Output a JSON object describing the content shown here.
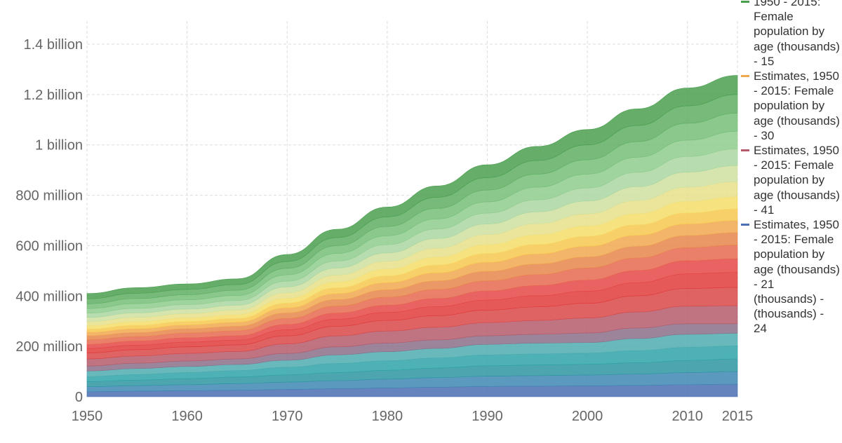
{
  "chart_data": {
    "type": "area",
    "stacked": true,
    "x": [
      1950,
      1955,
      1960,
      1965,
      1970,
      1975,
      1980,
      1985,
      1990,
      1995,
      2000,
      2005,
      2010,
      2015
    ],
    "xlim": [
      1950,
      2015
    ],
    "ylim": [
      0,
      1400000000
    ],
    "x_ticks": [
      {
        "value": 1950,
        "label": "1950"
      },
      {
        "value": 1960,
        "label": "1960"
      },
      {
        "value": 1970,
        "label": "1970"
      },
      {
        "value": 1980,
        "label": "1980"
      },
      {
        "value": 1990,
        "label": "1990"
      },
      {
        "value": 2000,
        "label": "2000"
      },
      {
        "value": 2010,
        "label": "2010"
      },
      {
        "value": 2015,
        "label": "2015"
      }
    ],
    "y_ticks": [
      {
        "value": 0,
        "label": "0"
      },
      {
        "value": 200000000,
        "label": "200 million"
      },
      {
        "value": 400000000,
        "label": "400 million"
      },
      {
        "value": 600000000,
        "label": "600 million"
      },
      {
        "value": 800000000,
        "label": "800 million"
      },
      {
        "value": 1000000000,
        "label": "1 billion"
      },
      {
        "value": 1200000000,
        "label": "1.2 billion"
      },
      {
        "value": 1400000000,
        "label": "1.4 billion"
      }
    ],
    "grid": true,
    "legend_position": "right",
    "series_colors": [
      "#4a6fb3",
      "#3f87b3",
      "#2e97a1",
      "#2fa3a8",
      "#4fadb0",
      "#8b6f8a",
      "#b55a6a",
      "#d94848",
      "#e03c3c",
      "#e54848",
      "#e66a4f",
      "#e8864c",
      "#f0a850",
      "#f7c850",
      "#f5de6a",
      "#e8e08a",
      "#cfe0a0",
      "#a9d6a2",
      "#8fcc8d",
      "#76be78",
      "#5fae62",
      "#4a9f4f"
    ],
    "series": [
      {
        "values": [
          20,
          22,
          24,
          26,
          29,
          32,
          35,
          38,
          41,
          42,
          43,
          45,
          48,
          50
        ]
      },
      {
        "values": [
          20,
          22,
          24,
          26,
          29,
          32,
          35,
          38,
          41,
          42,
          43,
          45,
          48,
          50
        ]
      },
      {
        "values": [
          20,
          22,
          24,
          26,
          29,
          32,
          35,
          38,
          41,
          42,
          43,
          45,
          48,
          50
        ]
      },
      {
        "values": [
          20,
          22,
          24,
          26,
          30,
          36,
          38,
          40,
          43,
          44,
          44,
          48,
          52,
          52
        ]
      },
      {
        "values": [
          22,
          24,
          24,
          24,
          28,
          34,
          36,
          38,
          42,
          43,
          42,
          48,
          52,
          50
        ]
      },
      {
        "values": [
          20,
          21,
          22,
          22,
          27,
          32,
          34,
          34,
          34,
          35,
          38,
          42,
          42,
          38
        ]
      },
      {
        "values": [
          28,
          29,
          30,
          30,
          38,
          44,
          48,
          50,
          52,
          55,
          60,
          64,
          70,
          72
        ]
      },
      {
        "values": [
          24,
          25,
          26,
          26,
          32,
          38,
          42,
          46,
          50,
          54,
          58,
          64,
          70,
          72
        ]
      },
      {
        "values": [
          18,
          18,
          19,
          19,
          24,
          28,
          32,
          36,
          40,
          44,
          48,
          52,
          58,
          60
        ]
      },
      {
        "values": [
          16,
          16,
          17,
          17,
          21,
          24,
          28,
          32,
          36,
          40,
          44,
          48,
          52,
          54
        ]
      },
      {
        "values": [
          18,
          18,
          19,
          20,
          24,
          28,
          32,
          36,
          40,
          44,
          48,
          50,
          52,
          54
        ]
      },
      {
        "values": [
          16,
          16,
          17,
          18,
          22,
          26,
          30,
          34,
          38,
          42,
          44,
          46,
          48,
          50
        ]
      },
      {
        "values": [
          14,
          15,
          15,
          16,
          20,
          24,
          28,
          32,
          36,
          40,
          42,
          44,
          46,
          48
        ]
      },
      {
        "values": [
          13,
          14,
          14,
          15,
          19,
          23,
          27,
          31,
          35,
          38,
          40,
          42,
          44,
          46
        ]
      },
      {
        "values": [
          13,
          14,
          14,
          15,
          19,
          23,
          27,
          31,
          35,
          38,
          41,
          44,
          46,
          48
        ]
      },
      {
        "values": [
          16,
          17,
          17,
          18,
          22,
          27,
          31,
          36,
          40,
          44,
          48,
          52,
          56,
          60
        ]
      },
      {
        "values": [
          17,
          18,
          18,
          19,
          23,
          28,
          33,
          38,
          42,
          47,
          51,
          55,
          60,
          64
        ]
      },
      {
        "values": [
          17,
          18,
          18,
          19,
          23,
          28,
          33,
          38,
          43,
          48,
          52,
          57,
          62,
          66
        ]
      },
      {
        "values": [
          18,
          19,
          19,
          20,
          25,
          30,
          35,
          40,
          45,
          50,
          55,
          60,
          65,
          70
        ]
      },
      {
        "values": [
          19,
          20,
          20,
          21,
          26,
          31,
          37,
          42,
          47,
          52,
          57,
          62,
          67,
          72
        ]
      },
      {
        "values": [
          20,
          21,
          21,
          22,
          27,
          32,
          38,
          44,
          49,
          54,
          59,
          64,
          69,
          74
        ]
      },
      {
        "values": [
          21,
          22,
          22,
          23,
          28,
          33,
          39,
          45,
          51,
          56,
          61,
          66,
          71,
          76
        ]
      }
    ],
    "value_unit_multiplier": 1000000,
    "legend_entries": [
      {
        "text": "1950 - 2015: Female population by age (thousands) - 15",
        "color": "#4a9f4f"
      },
      {
        "text": "Estimates, 1950 - 2015: Female population by age (thousands) - 30",
        "color": "#f0a850"
      },
      {
        "text": "Estimates, 1950 - 2015: Female population by age (thousands) - 41",
        "color": "#b55a6a"
      },
      {
        "text": "Estimates, 1950 - 2015: Female population by age (thousands) - 21",
        "color": "#4a6fb3"
      },
      {
        "text": "(thousands) -",
        "color": ""
      },
      {
        "text": "(thousands) -",
        "color": ""
      },
      {
        "text": "24",
        "color": ""
      }
    ]
  }
}
